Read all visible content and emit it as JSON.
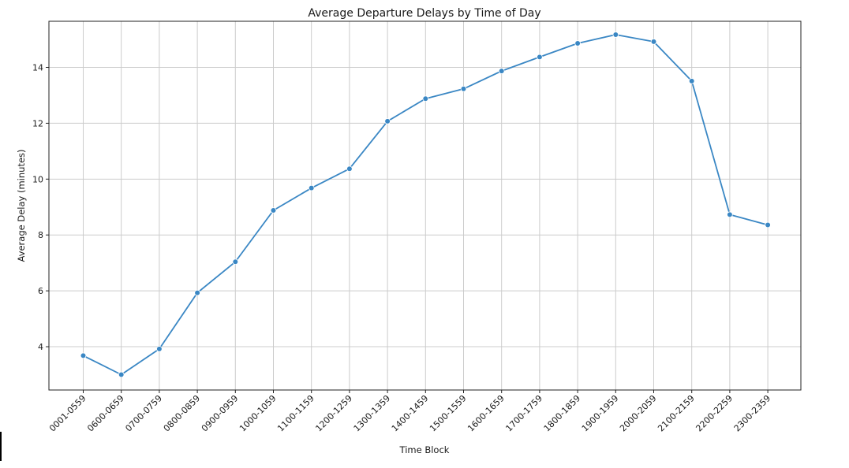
{
  "chart_data": {
    "type": "line",
    "title": "Average Departure Delays by Time of Day",
    "xlabel": "Time Block",
    "ylabel": "Average Delay (minutes)",
    "categories": [
      "0001-0559",
      "0600-0659",
      "0700-0759",
      "0800-0859",
      "0900-0959",
      "1000-1059",
      "1100-1159",
      "1200-1259",
      "1300-1359",
      "1400-1459",
      "1500-1559",
      "1600-1659",
      "1700-1759",
      "1800-1859",
      "1900-1959",
      "2000-2059",
      "2100-2159",
      "2200-2259",
      "2300-2359"
    ],
    "series": [
      {
        "values": [
          3.68,
          3.0,
          3.92,
          5.93,
          7.04,
          8.88,
          9.68,
          10.37,
          12.07,
          12.88,
          13.23,
          13.87,
          14.37,
          14.86,
          15.17,
          14.92,
          13.51,
          8.73,
          8.36
        ]
      }
    ],
    "ylim": [
      2.45,
      15.65
    ],
    "yticks": [
      4,
      6,
      8,
      10,
      12,
      14
    ],
    "grid": true,
    "line_color": "#3a87c4"
  }
}
